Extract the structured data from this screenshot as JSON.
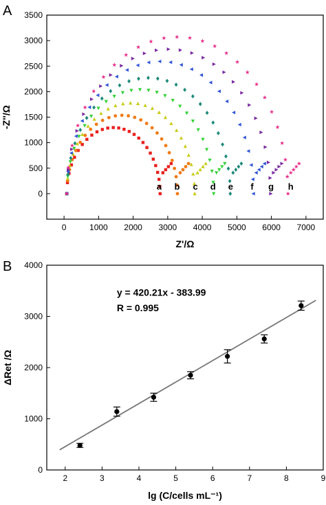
{
  "chart_data": [
    {
      "panel_label": "A",
      "type": "scatter",
      "xlabel": "Z'/Ω",
      "ylabel": "-Z''/Ω",
      "xlim": [
        -500,
        7500
      ],
      "ylim": [
        -500,
        3500
      ],
      "xticks": [
        0,
        1000,
        2000,
        3000,
        4000,
        5000,
        6000,
        7000
      ],
      "yticks": [
        0,
        500,
        1000,
        1500,
        2000,
        2500,
        3000,
        3500
      ],
      "grid": false,
      "series": [
        {
          "name": "a",
          "color": "#e8201e",
          "marker": "square",
          "rct": 2700,
          "label_x": 2750
        },
        {
          "name": "b",
          "color": "#f07a14",
          "marker": "circle",
          "rct": 3200,
          "label_x": 3270
        },
        {
          "name": "c",
          "color": "#c9cc1a",
          "marker": "triangle-up",
          "rct": 3700,
          "label_x": 3800
        },
        {
          "name": "d",
          "color": "#35d23a",
          "marker": "triangle-down",
          "rct": 4250,
          "label_x": 4310
        },
        {
          "name": "e",
          "color": "#1f8a7a",
          "marker": "diamond",
          "rct": 4730,
          "label_x": 4820
        },
        {
          "name": "f",
          "color": "#3055d6",
          "marker": "triangle-left",
          "rct": 5400,
          "label_x": 5440
        },
        {
          "name": "g",
          "color": "#7a2aa0",
          "marker": "triangle-right",
          "rct": 5900,
          "label_x": 5990
        },
        {
          "name": "h",
          "color": "#e82d8a",
          "marker": "star",
          "rct": 6400,
          "label_x": 6560
        }
      ]
    },
    {
      "panel_label": "B",
      "type": "scatter",
      "xlabel": "lg (C/cells mL⁻¹)",
      "ylabel": "ΔRet /Ω",
      "xlim": [
        1.5,
        9
      ],
      "ylim": [
        0,
        4000
      ],
      "xticks": [
        2,
        3,
        4,
        5,
        6,
        7,
        8,
        9
      ],
      "yticks": [
        0,
        1000,
        2000,
        3000,
        4000
      ],
      "grid": false,
      "points": [
        {
          "x": 2.4,
          "y": 480,
          "err": 40
        },
        {
          "x": 3.4,
          "y": 1140,
          "err": 90
        },
        {
          "x": 4.4,
          "y": 1420,
          "err": 80
        },
        {
          "x": 5.4,
          "y": 1850,
          "err": 70
        },
        {
          "x": 6.4,
          "y": 2220,
          "err": 130
        },
        {
          "x": 7.4,
          "y": 2560,
          "err": 80
        },
        {
          "x": 8.4,
          "y": 3210,
          "err": 90
        }
      ],
      "fit": {
        "slope": 420.21,
        "intercept": -383.99,
        "x_range": [
          1.85,
          8.8
        ]
      },
      "annotations": [
        "y = 420.21x - 383.99",
        "R = 0.995"
      ]
    }
  ]
}
